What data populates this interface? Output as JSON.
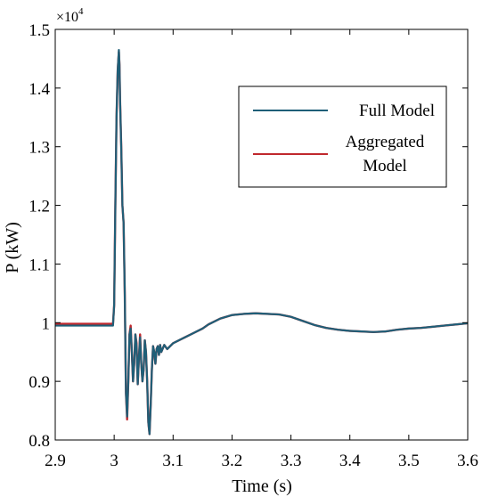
{
  "chart_data": {
    "type": "line",
    "title": "",
    "xlabel": "Time (s)",
    "ylabel": "P (kW)",
    "xlim": [
      2.9,
      3.6
    ],
    "ylim": [
      0.8,
      1.5
    ],
    "y_multiplier_label": "×10",
    "y_multiplier_exponent": "4",
    "x_ticks": [
      "2.9",
      "3",
      "3.1",
      "3.2",
      "3.3",
      "3.4",
      "3.5",
      "3.6"
    ],
    "y_ticks": [
      "0.8",
      "0.9",
      "1",
      "1.1",
      "1.2",
      "1.3",
      "1.4",
      "1.5"
    ],
    "legend_placement": "top-right",
    "grid": false,
    "series": [
      {
        "name": "Full Model",
        "color": "#1f5f78",
        "x": [
          2.9,
          2.95,
          2.998,
          3.0,
          3.002,
          3.004,
          3.006,
          3.008,
          3.009,
          3.01,
          3.012,
          3.014,
          3.016,
          3.018,
          3.02,
          3.022,
          3.024,
          3.026,
          3.028,
          3.03,
          3.032,
          3.034,
          3.036,
          3.038,
          3.04,
          3.042,
          3.044,
          3.046,
          3.048,
          3.05,
          3.052,
          3.054,
          3.056,
          3.058,
          3.06,
          3.062,
          3.064,
          3.066,
          3.068,
          3.07,
          3.072,
          3.074,
          3.076,
          3.078,
          3.08,
          3.085,
          3.09,
          3.1,
          3.11,
          3.12,
          3.13,
          3.14,
          3.15,
          3.16,
          3.17,
          3.18,
          3.19,
          3.2,
          3.22,
          3.24,
          3.26,
          3.28,
          3.3,
          3.32,
          3.34,
          3.36,
          3.38,
          3.4,
          3.42,
          3.44,
          3.46,
          3.48,
          3.5,
          3.52,
          3.54,
          3.56,
          3.58,
          3.6
        ],
        "y": [
          0.995,
          0.995,
          0.995,
          1.03,
          1.2,
          1.35,
          1.43,
          1.465,
          1.44,
          1.38,
          1.3,
          1.2,
          1.17,
          1.05,
          0.88,
          0.84,
          0.9,
          0.98,
          0.99,
          0.95,
          0.9,
          0.93,
          0.98,
          0.96,
          0.895,
          0.94,
          0.975,
          0.93,
          0.9,
          0.92,
          0.97,
          0.95,
          0.9,
          0.83,
          0.81,
          0.86,
          0.92,
          0.96,
          0.95,
          0.93,
          0.955,
          0.96,
          0.945,
          0.962,
          0.95,
          0.962,
          0.955,
          0.965,
          0.97,
          0.975,
          0.98,
          0.985,
          0.99,
          0.997,
          1.002,
          1.007,
          1.01,
          1.013,
          1.015,
          1.016,
          1.015,
          1.014,
          1.01,
          1.003,
          0.996,
          0.991,
          0.988,
          0.986,
          0.985,
          0.984,
          0.985,
          0.988,
          0.99,
          0.991,
          0.993,
          0.995,
          0.997,
          0.999
        ]
      },
      {
        "name": "Aggregated Model",
        "color": "#c0282d",
        "x": [
          2.9,
          2.95,
          2.998,
          3.0,
          3.002,
          3.004,
          3.006,
          3.008,
          3.009,
          3.01,
          3.012,
          3.014,
          3.016,
          3.018,
          3.02,
          3.022,
          3.024,
          3.026,
          3.028,
          3.03,
          3.032,
          3.034,
          3.036,
          3.038,
          3.04,
          3.042,
          3.044,
          3.046,
          3.048,
          3.05,
          3.052,
          3.054,
          3.056,
          3.058,
          3.06,
          3.062,
          3.064,
          3.066,
          3.068,
          3.07,
          3.072,
          3.074,
          3.076,
          3.078,
          3.08,
          3.085,
          3.09,
          3.1,
          3.11,
          3.12,
          3.13,
          3.14,
          3.15,
          3.16,
          3.17,
          3.18,
          3.19,
          3.2,
          3.22,
          3.24,
          3.26,
          3.28,
          3.3,
          3.32,
          3.34,
          3.36,
          3.38,
          3.4,
          3.42,
          3.44,
          3.46,
          3.48,
          3.5,
          3.52,
          3.54,
          3.56,
          3.58,
          3.6
        ],
        "y": [
          0.998,
          0.998,
          0.998,
          1.03,
          1.2,
          1.35,
          1.43,
          1.462,
          1.44,
          1.38,
          1.3,
          1.2,
          1.17,
          1.05,
          0.88,
          0.835,
          0.9,
          0.98,
          0.995,
          0.95,
          0.9,
          0.93,
          0.98,
          0.965,
          0.895,
          0.94,
          0.98,
          0.93,
          0.9,
          0.92,
          0.97,
          0.95,
          0.9,
          0.83,
          0.81,
          0.86,
          0.92,
          0.96,
          0.95,
          0.93,
          0.955,
          0.96,
          0.945,
          0.962,
          0.95,
          0.962,
          0.955,
          0.965,
          0.97,
          0.975,
          0.98,
          0.985,
          0.99,
          0.997,
          1.002,
          1.007,
          1.01,
          1.013,
          1.015,
          1.016,
          1.015,
          1.014,
          1.01,
          1.003,
          0.996,
          0.991,
          0.988,
          0.986,
          0.985,
          0.984,
          0.985,
          0.988,
          0.99,
          0.991,
          0.993,
          0.995,
          0.997,
          0.999
        ]
      }
    ],
    "legend": {
      "entries": [
        {
          "lines": [
            "Full Model"
          ]
        },
        {
          "lines": [
            "Aggregated",
            "Model"
          ]
        }
      ]
    }
  }
}
